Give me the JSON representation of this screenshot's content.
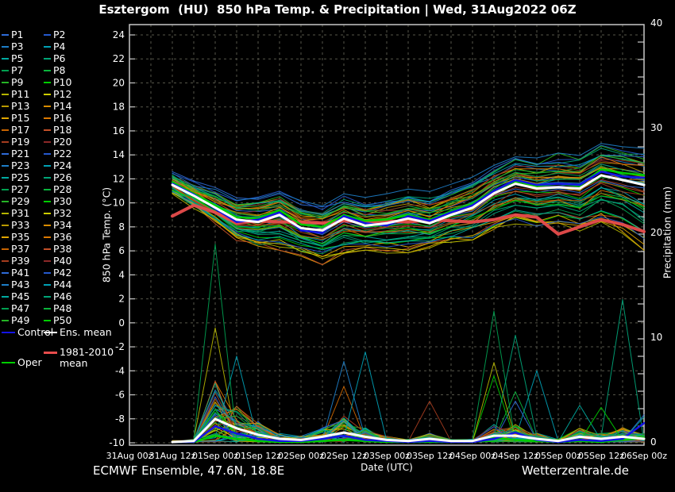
{
  "title": "Esztergom  (HU)  850 hPa Temp. & Precipitation | Wed, 31Aug2022 06Z",
  "footer": {
    "left": "ECMWF Ensemble, 47.6N, 18.8E",
    "right": "Wetterzentrale.de"
  },
  "axes": {
    "x_label": "Date (UTC)",
    "x_ticks": [
      "31Aug 00z",
      "31Aug 12z",
      "01Sep 00z",
      "01Sep 12z",
      "02Sep 00z",
      "02Sep 12z",
      "03Sep 00z",
      "03Sep 12z",
      "04Sep 00z",
      "04Sep 12z",
      "05Sep 00z",
      "05Sep 12z",
      "06Sep 00z"
    ],
    "y_left_label": "850 hPa Temp. (°C)",
    "y_left_ticks": [
      24,
      22,
      20,
      18,
      16,
      14,
      12,
      10,
      8,
      6,
      4,
      2,
      0,
      -2,
      -4,
      -6,
      -8,
      -10
    ],
    "y_left_range": [
      -10,
      24
    ],
    "y_right_label": "Precipitation (mm)",
    "y_right_ticks": [
      40,
      30,
      20,
      10,
      0
    ],
    "y_right_range": [
      0,
      40
    ],
    "grid": "on"
  },
  "legend": {
    "member_names": [
      "P1",
      "P2",
      "P3",
      "P4",
      "P5",
      "P6",
      "P7",
      "P8",
      "P9",
      "P10",
      "P11",
      "P12",
      "P13",
      "P14",
      "P15",
      "P16",
      "P17",
      "P18",
      "P19",
      "P20",
      "P21",
      "P22",
      "P23",
      "P24",
      "P25",
      "P26",
      "P27",
      "P28",
      "P29",
      "P30",
      "P31",
      "P32",
      "P33",
      "P34",
      "P35",
      "P36",
      "P37",
      "P38",
      "P39",
      "P40",
      "P41",
      "P42",
      "P43",
      "P44",
      "P45",
      "P46",
      "P47",
      "P48",
      "P49",
      "P50"
    ],
    "control_label": "Control",
    "ens_mean_label": "Ens. mean",
    "climate_label": "1981-2010 mean",
    "climate_label_lines": [
      "1981-2010",
      "mean"
    ],
    "oper_label": "Oper"
  },
  "colors": {
    "background": "#000000",
    "text": "#ffffff",
    "frame": "#c8c8c8",
    "grid": "#56564a",
    "control": "#1414e6",
    "ens_mean": "#ffffff",
    "climate": "#e84c4c",
    "oper": "#00cd00",
    "member_palette20": [
      "#2e6bd8",
      "#2559cd",
      "#1d7ec8",
      "#00a0b4",
      "#00aaa0",
      "#00a578",
      "#00a050",
      "#0ab43c",
      "#25b425",
      "#00cd00",
      "#b4b400",
      "#cdcd00",
      "#b99a00",
      "#d88c00",
      "#e0a500",
      "#dc7800",
      "#c86400",
      "#c35028",
      "#a53c1e",
      "#8c2828"
    ]
  },
  "chart_data": {
    "type": "line",
    "title": "Esztergom (HU) 850 hPa Temp. & Precipitation, ECMWF ensemble run Wed 31Aug2022 06Z",
    "xlabel": "Date (UTC)",
    "x_tick_labels": [
      "31Aug 00z",
      "31Aug 12z",
      "01Sep 00z",
      "01Sep 12z",
      "02Sep 00z",
      "02Sep 12z",
      "03Sep 00z",
      "03Sep 12z",
      "04Sep 00z",
      "04Sep 12z",
      "05Sep 00z",
      "05Sep 12z",
      "06Sep 00z"
    ],
    "x_axis_range_hours_after_31Aug00z": [
      0,
      144
    ],
    "data_start_hour": 12,
    "data_step_hours": 6,
    "n_points": 23,
    "n_members": 50,
    "temp_c": {
      "ylim": [
        -10,
        24
      ],
      "ens_mean": [
        11.5,
        10.6,
        9.6,
        8.6,
        8.4,
        9.0,
        7.9,
        7.7,
        8.7,
        8.1,
        8.3,
        8.7,
        8.3,
        9.0,
        9.6,
        10.8,
        11.6,
        11.2,
        11.3,
        11.2,
        12.3,
        11.9,
        11.5
      ],
      "control": [
        11.6,
        10.7,
        9.5,
        8.4,
        8.6,
        9.2,
        7.7,
        7.5,
        8.9,
        8.3,
        8.1,
        8.9,
        8.5,
        9.2,
        9.8,
        11.0,
        11.9,
        11.5,
        11.6,
        11.5,
        12.6,
        12.2,
        12.1
      ],
      "oper": [
        11.7,
        10.8,
        9.8,
        8.8,
        8.7,
        9.4,
        8.2,
        8.0,
        9.0,
        8.5,
        8.6,
        9.0,
        8.6,
        9.3,
        9.9,
        11.0,
        11.8,
        11.4,
        11.6,
        11.4,
        12.8,
        12.5,
        12.3
      ],
      "climate_1981_2010": [
        8.9,
        9.8,
        9.2,
        8.3,
        8.5,
        8.4,
        8.4,
        8.3,
        8.5,
        8.4,
        8.5,
        8.4,
        8.6,
        8.5,
        8.4,
        8.6,
        9.0,
        8.8,
        7.4,
        8.0,
        8.6,
        8.2,
        7.6
      ],
      "envelope_min": [
        10.7,
        9.6,
        8.4,
        7.0,
        6.4,
        6.2,
        5.6,
        5.0,
        5.6,
        6.0,
        5.8,
        5.8,
        6.3,
        6.6,
        6.8,
        7.6,
        8.2,
        7.9,
        8.3,
        7.8,
        8.5,
        7.6,
        6.2
      ],
      "envelope_max": [
        12.6,
        11.7,
        11.2,
        10.4,
        10.6,
        11.0,
        10.2,
        9.8,
        10.6,
        10.3,
        10.6,
        11.0,
        10.8,
        11.4,
        12.0,
        13.0,
        13.8,
        13.6,
        14.0,
        13.8,
        14.8,
        14.6,
        14.4
      ]
    },
    "precip_mm": {
      "ylim": [
        0,
        40
      ],
      "ens_mean": [
        0,
        0.1,
        2.2,
        1.3,
        0.7,
        0.3,
        0.2,
        0.5,
        0.9,
        0.5,
        0.2,
        0.1,
        0.3,
        0.1,
        0.1,
        0.6,
        0.6,
        0.3,
        0.1,
        0.5,
        0.3,
        0.5,
        0.3
      ],
      "control": [
        0,
        0,
        1.5,
        0.8,
        0.3,
        0.1,
        0.1,
        0.3,
        0.6,
        0.2,
        0.1,
        0,
        0.1,
        0,
        0,
        0.3,
        0.9,
        0.2,
        0,
        0.2,
        0.1,
        0.3,
        1.8
      ],
      "oper": [
        0,
        0,
        0.6,
        0.3,
        0.1,
        0,
        0,
        0.1,
        0.2,
        0.1,
        0,
        0,
        0,
        0,
        0,
        0.4,
        0.2,
        0.1,
        0,
        0.1,
        0,
        0.2,
        0.4
      ],
      "envelope_max": [
        0,
        0.5,
        18.9,
        8.2,
        3.5,
        1.5,
        1.2,
        5.3,
        7.7,
        8.6,
        1.5,
        1.0,
        3.9,
        1.2,
        0.8,
        12.5,
        10.2,
        6.8,
        2.0,
        3.5,
        3.3,
        13.6,
        2.6
      ],
      "outlier_spikes": [
        {
          "member": 46,
          "time_index": 2,
          "peak": 18.9
        },
        {
          "member": 10,
          "time_index": 2,
          "peak": 10.9
        },
        {
          "member": 17,
          "time_index": 2,
          "peak": 5.8
        },
        {
          "member": 23,
          "time_index": 3,
          "peak": 8.2
        },
        {
          "member": 22,
          "time_index": 8,
          "peak": 7.7
        },
        {
          "member": 16,
          "time_index": 8,
          "peak": 5.3
        },
        {
          "member": 43,
          "time_index": 9,
          "peak": 8.6
        },
        {
          "member": 38,
          "time_index": 12,
          "peak": 3.9
        },
        {
          "member": 26,
          "time_index": 15,
          "peak": 12.5
        },
        {
          "member": 29,
          "time_index": 15,
          "peak": 6.3
        },
        {
          "member": 30,
          "time_index": 15,
          "peak": 7.6
        },
        {
          "member": 45,
          "time_index": 16,
          "peak": 10.2
        },
        {
          "member": 27,
          "time_index": 16,
          "peak": 4.8
        },
        {
          "member": 20,
          "time_index": 16,
          "peak": 3.9
        },
        {
          "member": 3,
          "time_index": 17,
          "peak": 6.8
        },
        {
          "member": 44,
          "time_index": 19,
          "peak": 3.5
        },
        {
          "member": 49,
          "time_index": 20,
          "peak": 3.3
        },
        {
          "member": 5,
          "time_index": 21,
          "peak": 13.6
        },
        {
          "member": 40,
          "time_index": 22,
          "peak": 2.6
        },
        {
          "member": 24,
          "time_index": 22,
          "peak": 2.4
        }
      ]
    }
  }
}
